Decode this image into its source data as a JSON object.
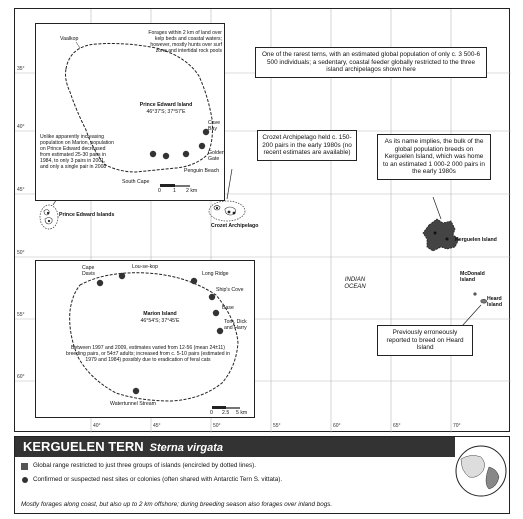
{
  "map": {
    "lat_ticks": [
      "35°",
      "40°",
      "45°",
      "50°",
      "55°",
      "60°"
    ],
    "lon_ticks": [
      "40°",
      "45°",
      "50°",
      "55°",
      "60°",
      "65°",
      "70°"
    ],
    "ocean_label": "INDIAN\nOCEAN",
    "island_labels": {
      "prince_edward": "Prince Edward Islands",
      "crozet": "Crozet Archipelago",
      "kerguelen": "Kerguelen Island",
      "mcdonald": "McDonald\nIsland",
      "heard": "Heard\nIsland"
    },
    "callouts": {
      "global": "One of the rarest terns, with an estimated global population of only c. 3 500-6 500 individuals; a sedentary, coastal feeder globally restricted to the three island archipelagos shown here",
      "crozet": "Crozet Archipelago held c. 150-200 pairs in the early 1980s (no recent estimates are available)",
      "kerguelen": "As its name implies, the bulk of the global population breeds on Kerguelen Island, which was home to an estimated 1 000-2 000 pairs in the early 1980s",
      "heard": "Previously erroneously reported to breed on Heard Island"
    },
    "inset_pe": {
      "title": "Prince Edward Island",
      "coords": "46°37'S; 37°57'E",
      "forage_note": "Forages within 2 km of land over kelp beds and coastal waters; however, mostly hunts over surf zone and intertidal rock pools",
      "population_note": "Unlike apparently increasing population on Marion, population on Prince Edward decreased from estimated 25-30 pairs in 1984, to only 3 pairs in 2001, and only a single pair in 2008",
      "places": {
        "vaalkop": "Vaalkop",
        "cave_bay": "Cave\nBay",
        "golden_gate": "Golden\nGate",
        "penguin_beach": "Penguin Beach",
        "south_cape": "South Cape"
      },
      "scale": [
        "0",
        "1",
        "2 km"
      ]
    },
    "inset_marion": {
      "title": "Marion Island",
      "coords": "46°54'S; 37°45'E",
      "note": "Between 1997 and 2009, estimates varied from 12-56 (mean 24±11) breeding pairs, or 54±7 adults; increased from c. 5-10 pairs (estimated in 1979 and 1984) possibly due to eradication of feral cats",
      "places": {
        "cape_davis": "Cape\nDavis",
        "lou_se_kop": "Lou-se-kop",
        "long_ridge": "Long Ridge",
        "ships_cove": "Ship's Cove",
        "base": "Base",
        "tom_dick_harry": "Tom, Dick\nand Harry",
        "watertunnel": "Watertunnel Stream"
      },
      "scale": [
        "0",
        "2.5",
        "5 km"
      ]
    }
  },
  "legend": {
    "title": "KERGUELEN TERN",
    "scientific_name": "Sterna virgata",
    "range_text": "Global range restricted to just three groups of islands (encircled by dotted lines).",
    "sites_text": "Confirmed or suspected nest sites or colonies (often shared with Antarctic Tern S. vittata).",
    "foraging_text": "Mostly forages along coast, but also up to 2 km offshore; during breeding season also forages over inland bogs."
  }
}
